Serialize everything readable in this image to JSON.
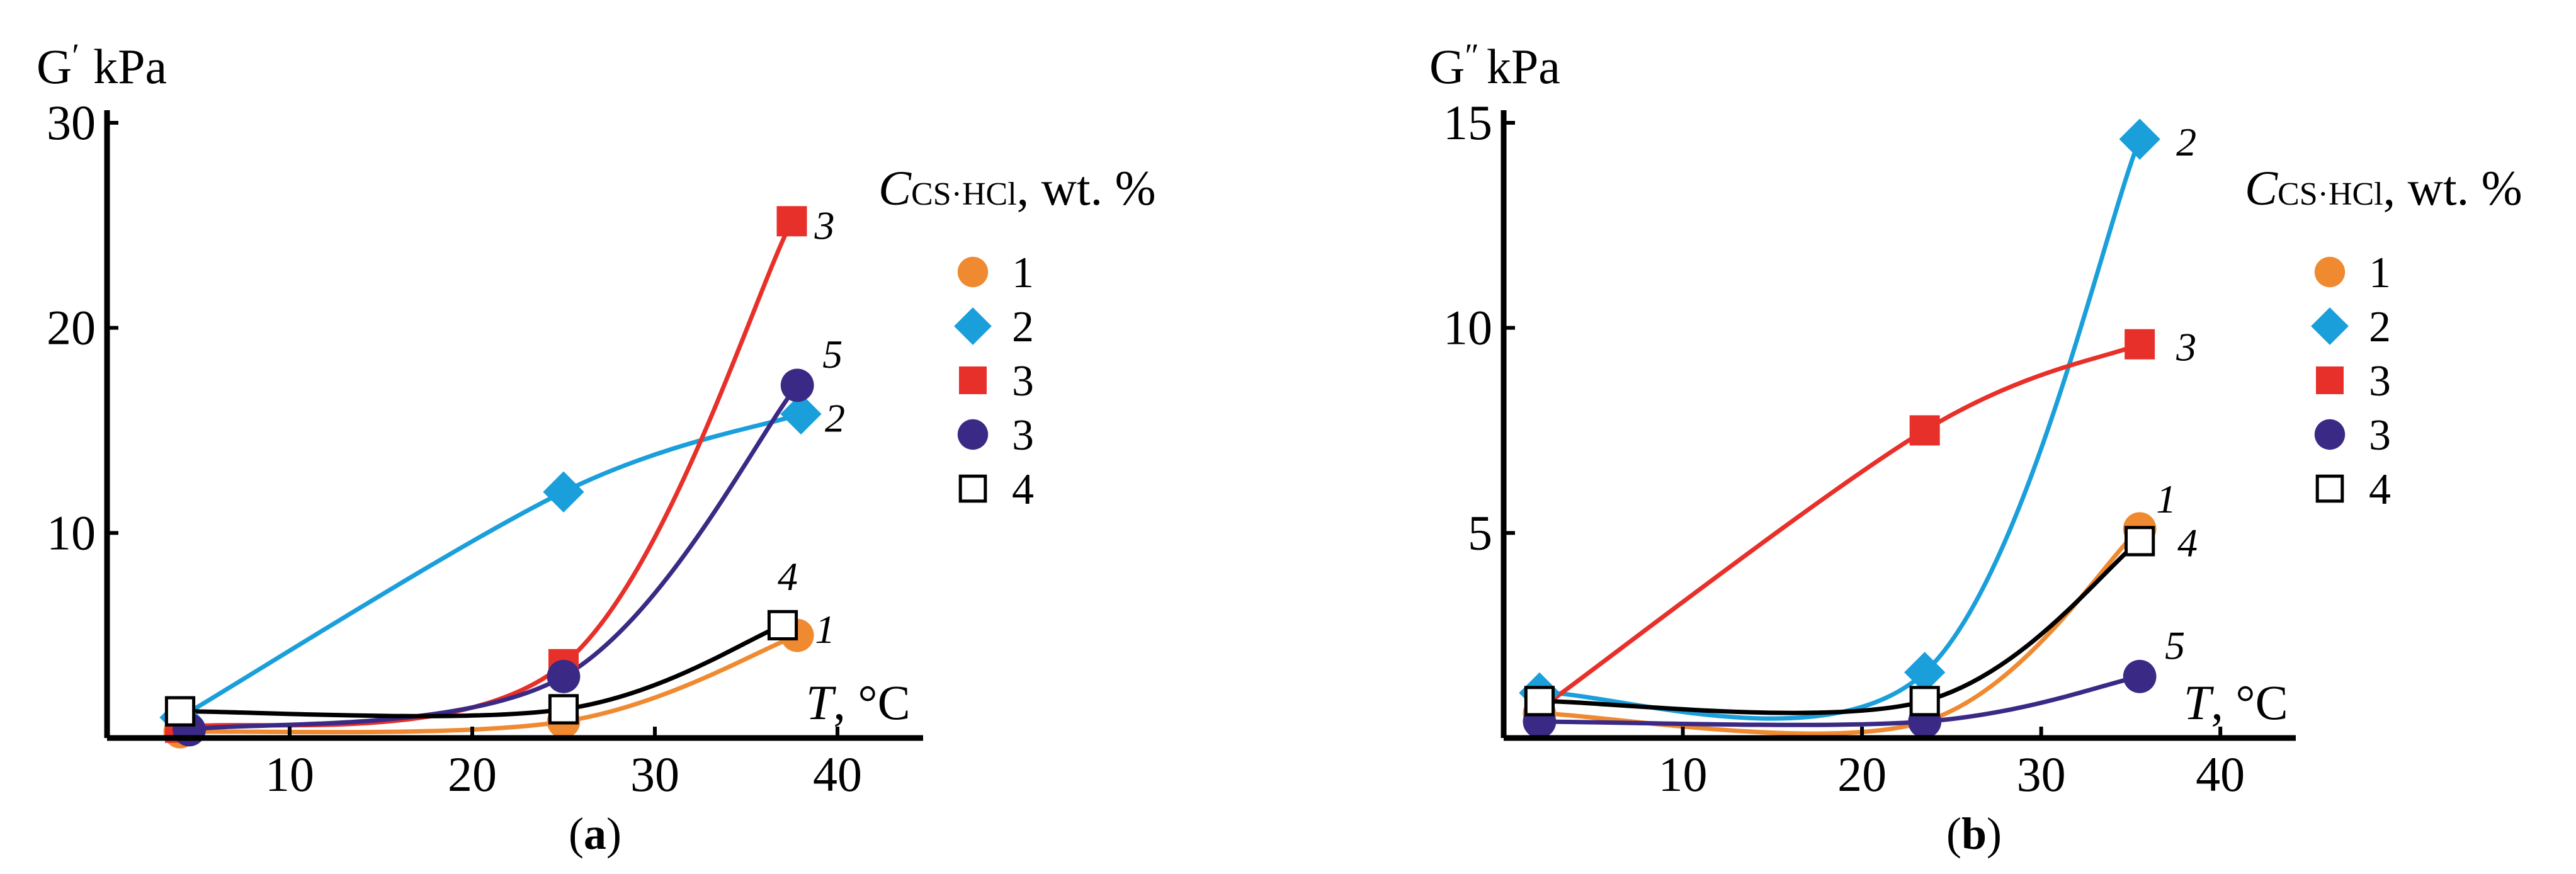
{
  "colors": {
    "s1": "#f08a30",
    "s2": "#1a9fdb",
    "s3": "#e8302a",
    "s5": "#3b2a85",
    "s4": "#000000"
  },
  "chart_data": [
    {
      "type": "line",
      "panel_label": "(a)",
      "panel_letter": "a",
      "ylabel": "G′, kPa",
      "ylabel_text": "G",
      "ylabel_mark": "′",
      "ylabel_unit": "kPa",
      "xlabel": "T, °C",
      "xlabel_var": "T",
      "xlabel_unit": ", °C",
      "xlim": [
        0,
        44
      ],
      "ylim": [
        0,
        30
      ],
      "xticks": [
        10,
        20,
        30,
        40
      ],
      "yticks": [
        10,
        20,
        30
      ],
      "legend_title": "CCS·HCl, wt. %",
      "legend_title_main": "C",
      "legend_title_sub": "CS·HCl",
      "legend_title_tail": ", wt. %",
      "legend": [
        "1",
        "2",
        "3",
        "3",
        "4"
      ],
      "series": [
        {
          "key": "s1",
          "marker": "circle",
          "curve_label": "1",
          "x": [
            4,
            25,
            37.8
          ],
          "y": [
            0.3,
            0.8,
            5.0
          ]
        },
        {
          "key": "s2",
          "marker": "diamond",
          "curve_label": "2",
          "x": [
            4,
            25,
            38
          ],
          "y": [
            1.0,
            12.0,
            15.8
          ]
        },
        {
          "key": "s3",
          "marker": "square",
          "curve_label": "3",
          "x": [
            4,
            25,
            37.5
          ],
          "y": [
            0.5,
            3.6,
            25.2
          ]
        },
        {
          "key": "s5",
          "marker": "circle",
          "curve_label": "5",
          "x": [
            4.5,
            25,
            37.8
          ],
          "y": [
            0.4,
            3.0,
            17.2
          ]
        },
        {
          "key": "s4",
          "marker": "open-square",
          "curve_label": "4",
          "x": [
            4,
            25,
            37
          ],
          "y": [
            1.3,
            1.4,
            5.5
          ]
        }
      ]
    },
    {
      "type": "line",
      "panel_label": "(b)",
      "panel_letter": "b",
      "ylabel": "G″, kPa",
      "ylabel_text": "G",
      "ylabel_mark": "″",
      "ylabel_unit": "kPa",
      "xlabel": "T, °C",
      "xlabel_var": "T",
      "xlabel_unit": ", °C",
      "xlim": [
        0,
        44
      ],
      "ylim": [
        0,
        15
      ],
      "xticks": [
        10,
        20,
        30,
        40
      ],
      "yticks": [
        5,
        10,
        15
      ],
      "legend_title": "CCS·HCl, wt. %",
      "legend_title_main": "C",
      "legend_title_sub": "CS·HCl",
      "legend_title_tail": ", wt. %",
      "legend": [
        "1",
        "2",
        "3",
        "3",
        "4"
      ],
      "series": [
        {
          "key": "s1",
          "marker": "circle",
          "curve_label": "1",
          "x": [
            2,
            23.5,
            35.5
          ],
          "y": [
            0.6,
            0.4,
            5.1
          ]
        },
        {
          "key": "s2",
          "marker": "diamond",
          "curve_label": "2",
          "x": [
            2,
            23.5,
            35.5
          ],
          "y": [
            1.1,
            1.6,
            14.6
          ]
        },
        {
          "key": "s3",
          "marker": "square",
          "curve_label": "3",
          "x": [
            2,
            23.5,
            35.5
          ],
          "y": [
            0.7,
            7.5,
            9.6
          ]
        },
        {
          "key": "s5",
          "marker": "circle",
          "curve_label": "5",
          "x": [
            2,
            23.5,
            35.5
          ],
          "y": [
            0.4,
            0.4,
            1.5
          ]
        },
        {
          "key": "s4",
          "marker": "open-square",
          "curve_label": "4",
          "x": [
            2,
            23.5,
            35.5
          ],
          "y": [
            0.9,
            0.9,
            4.8
          ]
        }
      ]
    }
  ]
}
